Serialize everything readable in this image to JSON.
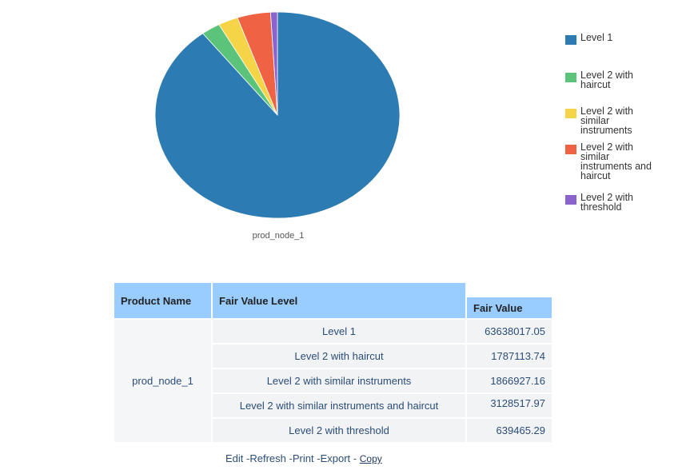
{
  "chart_data": {
    "type": "pie",
    "caption": "prod_node_1",
    "categories": [
      "Level 1",
      "Level 2 with haircut",
      "Level 2 with similar instruments",
      "Level 2 with similar instruments and haircut",
      "Level 2 with threshold"
    ],
    "values": [
      63638017.05,
      1787113.74,
      1866927.16,
      3128517.97,
      639465.29
    ],
    "colors": [
      "#2c7bb2",
      "#5cc47a",
      "#f5d547",
      "#ef6344",
      "#8a63cc"
    ],
    "legend_position": "right"
  },
  "legend": {
    "items": [
      {
        "label": "Level 1",
        "color": "#2c7bb2"
      },
      {
        "label": "Level 2 with haircut",
        "color": "#5cc47a"
      },
      {
        "label": "Level 2 with similar instruments",
        "color": "#f5d547"
      },
      {
        "label": "Level 2 with similar instruments and haircut",
        "color": "#ef6344"
      },
      {
        "label": "Level 2 with threshold",
        "color": "#8a63cc"
      }
    ]
  },
  "table": {
    "headers": {
      "product_name": "Product Name",
      "fair_value_level": "Fair Value Level",
      "fair_value": "Fair Value"
    },
    "product": "prod_node_1",
    "rows": [
      {
        "level": "Level 1",
        "value": "63638017.05"
      },
      {
        "level": "Level 2 with haircut",
        "value": "1787113.74"
      },
      {
        "level": "Level 2 with similar instruments",
        "value": "1866927.16"
      },
      {
        "level": "Level 2 with similar instruments and haircut",
        "value": "3128517.97"
      },
      {
        "level": "Level 2 with threshold",
        "value": "639465.29"
      }
    ]
  },
  "footer": {
    "edit": "Edit",
    "refresh": "Refresh",
    "print": "Print",
    "export": "Export",
    "copy": "Copy",
    "separator": "-"
  }
}
